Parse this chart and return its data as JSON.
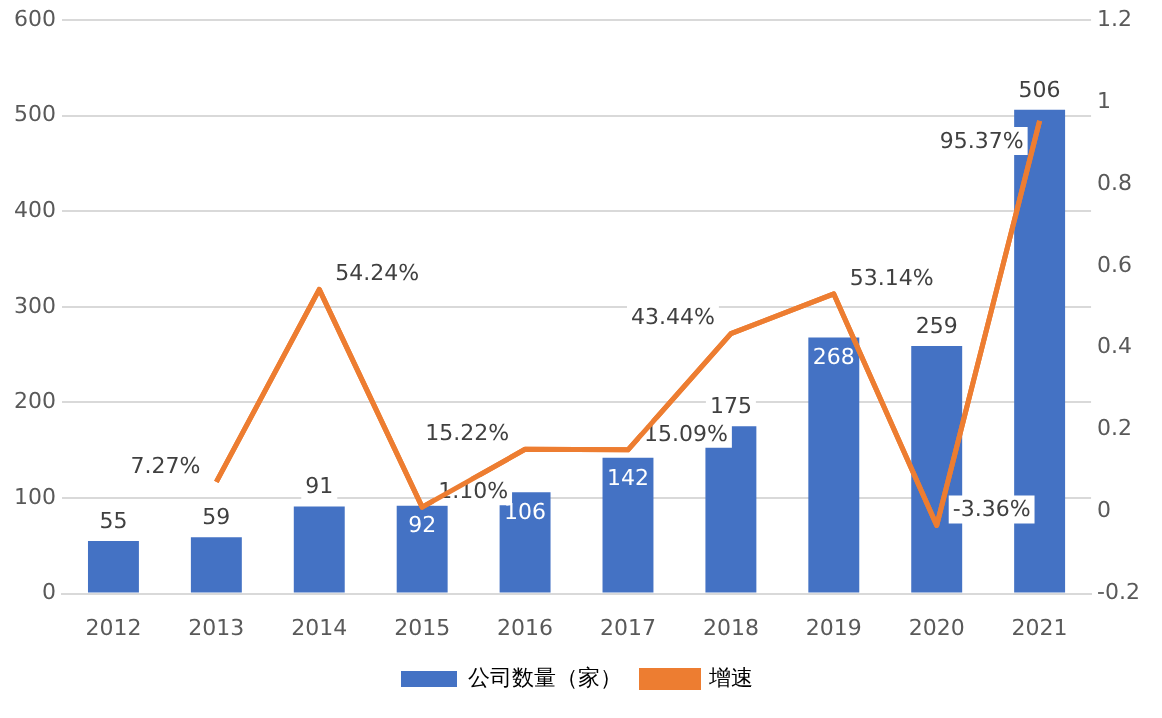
{
  "chart_data": {
    "type": "bar",
    "categories": [
      "2012",
      "2013",
      "2014",
      "2015",
      "2016",
      "2017",
      "2018",
      "2019",
      "2020",
      "2021"
    ],
    "series": [
      {
        "name": "公司数量（家）",
        "color": "#4472c4",
        "values": [
          55,
          59,
          91,
          92,
          106,
          142,
          175,
          268,
          259,
          506
        ],
        "value_labels": [
          "55",
          "59",
          "91",
          "92",
          "106",
          "142",
          "175",
          "268",
          "259",
          "506"
        ]
      },
      {
        "name": "增速",
        "type": "line",
        "axis": "y2",
        "color": "#ed7d31",
        "values": [
          null,
          0.0727,
          0.5424,
          0.011,
          0.1522,
          0.1509,
          0.4344,
          0.5314,
          -0.0336,
          0.9537
        ],
        "value_labels": [
          null,
          "7.27%",
          "54.24%",
          "1.10%",
          "15.22%",
          "15.09%",
          "43.44%",
          "53.14%",
          "-3.36%",
          "95.37%"
        ]
      }
    ],
    "ylim": [
      0,
      600
    ],
    "yticks": [
      0,
      100,
      200,
      300,
      400,
      500,
      600
    ],
    "y2lim": [
      -0.2,
      1.2
    ],
    "y2ticks": [
      -0.2,
      0,
      0.2,
      0.4,
      0.6,
      0.8,
      1,
      1.2
    ],
    "grid": "y",
    "legend": "bottom",
    "marker": "none",
    "line_style": "solid"
  }
}
